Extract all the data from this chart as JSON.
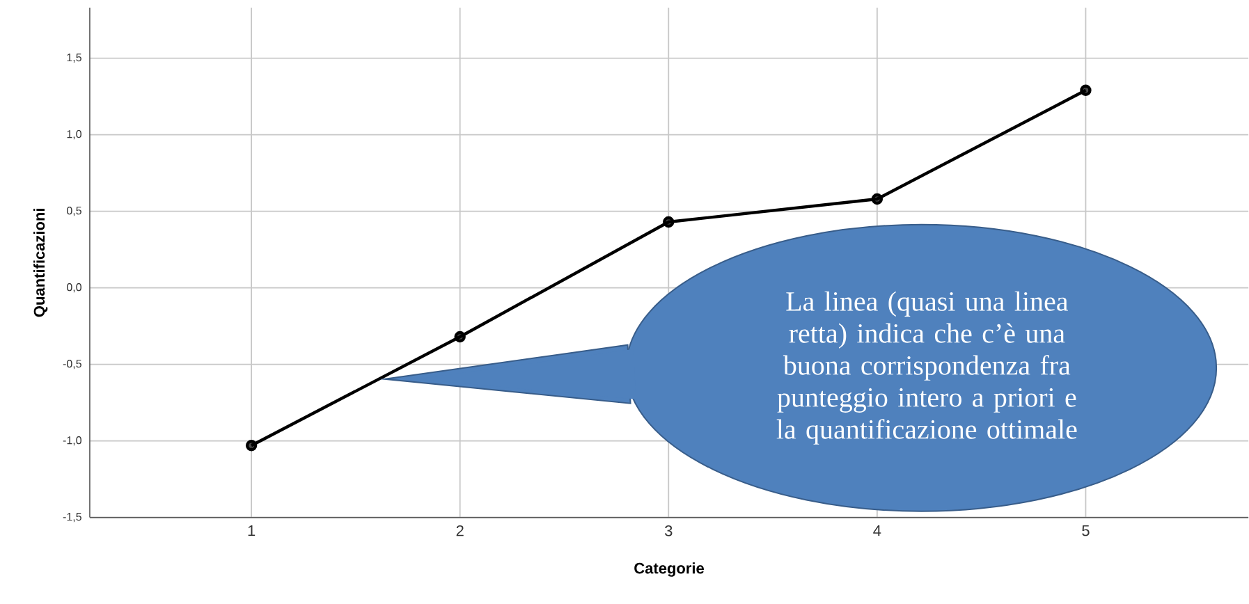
{
  "chart_data": {
    "type": "line",
    "xlabel": "Categorie",
    "ylabel": "Quantificazioni",
    "categories": [
      "1",
      "2",
      "3",
      "4",
      "5"
    ],
    "series": [
      {
        "color": "#000000",
        "values": [
          -1.03,
          -0.32,
          0.43,
          0.58,
          1.29
        ]
      }
    ],
    "ylim": [
      -1.5,
      1.83
    ],
    "yticks": [
      {
        "value": -1.5,
        "label": "-1,5"
      },
      {
        "value": -1.0,
        "label": "-1,0"
      },
      {
        "value": -0.5,
        "label": "-0,5"
      },
      {
        "value": 0.0,
        "label": "0,0"
      },
      {
        "value": 0.5,
        "label": "0,5"
      },
      {
        "value": 1.0,
        "label": "1,0"
      },
      {
        "value": 1.5,
        "label": "1,5"
      }
    ],
    "grid": true,
    "marker": "circle",
    "line_style": "solid",
    "annotations": [
      "La linea (quasi una linea retta) indica che c’è una buona corrispondenza fra punteggio intero a priori e la quantificazione ottimale"
    ]
  }
}
